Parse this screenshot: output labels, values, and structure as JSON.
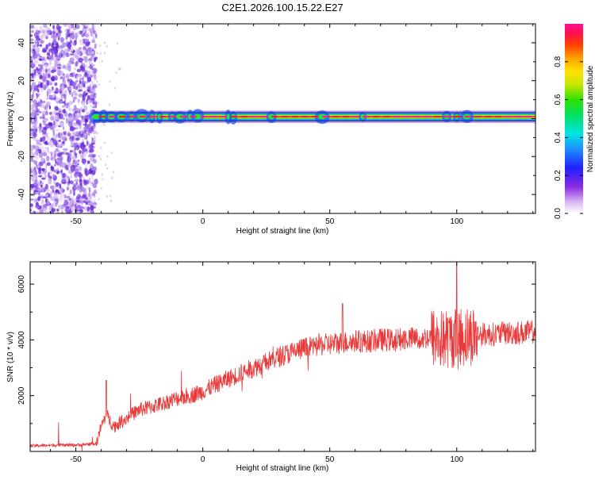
{
  "title": "C2E1.2026.100.15.22.E27",
  "colors": {
    "snr_line": "#e83a3a",
    "ridge": "#e8193a",
    "background_dots": "#6a2bdc"
  },
  "chart_data": [
    {
      "type": "heatmap",
      "title": "C2E1.2026.100.15.22.E27",
      "xlabel": "Height of straight line (km)",
      "ylabel": "Frequency (Hz)",
      "xlim": [
        -68,
        131
      ],
      "ylim": [
        -50,
        50
      ],
      "x_ticks": [
        -50,
        0,
        50,
        100
      ],
      "y_ticks": [
        -40,
        -20,
        0,
        20,
        40
      ],
      "ridge": {
        "x_start": -43,
        "x_end": 131,
        "frequency": 1,
        "band_half_width": 2,
        "notes": "strong narrow band near 0 Hz; broadband noise below -42 km"
      },
      "noise_region": {
        "x_start": -68,
        "x_end": -42
      },
      "colorbar": {
        "label": "Normalized spectral amplitude",
        "range": [
          0,
          1
        ],
        "ticks": [
          "0.0",
          "0.2",
          "0.4",
          "0.6",
          "0.8"
        ],
        "colormap": "rainbow (white → violet → blue → cyan → green → yellow → orange → red → magenta)"
      }
    },
    {
      "type": "line",
      "xlabel": "Height of straight line (km)",
      "ylabel": "SNR (10 * v/v)",
      "xlim": [
        -68,
        131
      ],
      "ylim": [
        0,
        6800
      ],
      "x_ticks": [
        -50,
        0,
        50,
        100
      ],
      "y_ticks": [
        2000,
        4000,
        6000
      ],
      "series": [
        {
          "x": [
            -68,
            -60,
            -50,
            -42,
            -40,
            -38,
            -35,
            -30,
            -25,
            -20,
            -15,
            -10,
            -5,
            0,
            5,
            10,
            15,
            20,
            25,
            30,
            35,
            40,
            45,
            50,
            55,
            60,
            65,
            70,
            75,
            80,
            85,
            90,
            95,
            100,
            105,
            110,
            115,
            120,
            125,
            131
          ],
          "y": [
            200,
            220,
            230,
            280,
            900,
            1300,
            900,
            1200,
            1500,
            1600,
            1750,
            1900,
            2000,
            2150,
            2400,
            2600,
            2800,
            3000,
            3200,
            3400,
            3550,
            3700,
            3800,
            3850,
            3900,
            3950,
            3950,
            4000,
            4000,
            4050,
            4050,
            4100,
            4000,
            4100,
            4150,
            4200,
            4200,
            4250,
            4250,
            4300
          ]
        }
      ]
    }
  ]
}
